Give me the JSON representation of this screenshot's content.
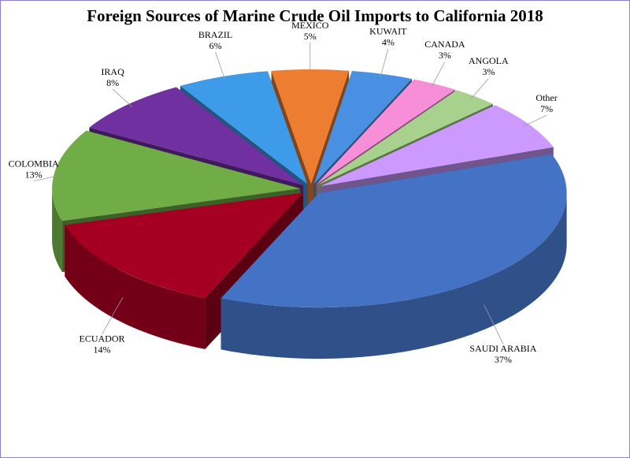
{
  "chart_data": {
    "type": "pie3d",
    "title": "Foreign Sources of Marine Crude Oil Imports to California 2018",
    "categories": [
      "SAUDI ARABIA",
      "ECUADOR",
      "COLOMBIA",
      "IRAQ",
      "BRAZIL",
      "MEXICO",
      "KUWAIT",
      "CANADA",
      "ANGOLA",
      "Other"
    ],
    "values": [
      37,
      14,
      13,
      8,
      6,
      5,
      4,
      3,
      3,
      7
    ],
    "value_labels": [
      "37%",
      "14%",
      "13%",
      "8%",
      "6%",
      "5%",
      "4%",
      "3%",
      "3%",
      "7%"
    ],
    "colors": [
      "#4472c4",
      "#a50021",
      "#70ad47",
      "#7030a0",
      "#3d9be9",
      "#ed7d31",
      "#4a90e2",
      "#f78fd8",
      "#a9d18e",
      "#cc99ff"
    ]
  }
}
